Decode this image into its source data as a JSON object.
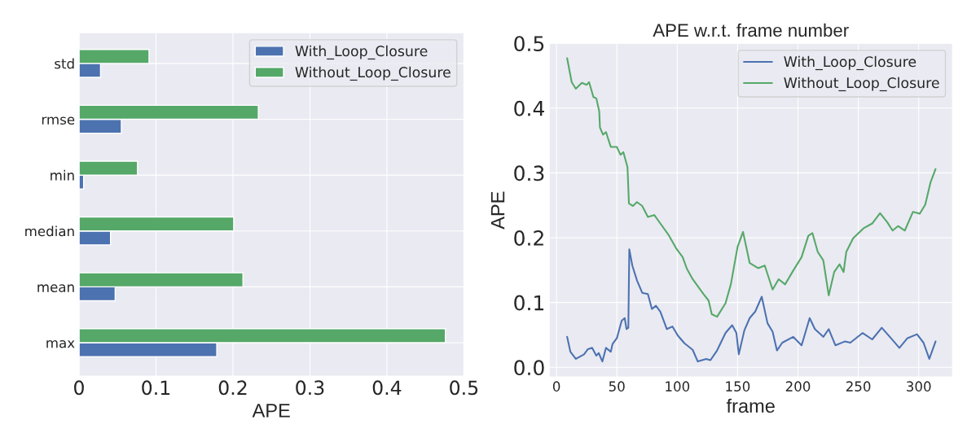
{
  "chart_data": [
    {
      "type": "bar",
      "orientation": "horizontal",
      "categories": [
        "std",
        "rmse",
        "min",
        "median",
        "mean",
        "max"
      ],
      "xlabel": "APE",
      "xlim": [
        0,
        0.5
      ],
      "xticks": [
        0,
        0.1,
        0.2,
        0.3,
        0.4,
        0.5
      ],
      "grid": true,
      "legend": "top right",
      "series": [
        {
          "name": "With_Loop_Closure",
          "color": "#4c72b0",
          "values": [
            0.028,
            0.055,
            0.006,
            0.041,
            0.047,
            0.179
          ]
        },
        {
          "name": "Without_Loop_Closure",
          "color": "#55a868",
          "values": [
            0.091,
            0.233,
            0.076,
            0.201,
            0.213,
            0.476
          ]
        }
      ]
    },
    {
      "type": "line",
      "title": "APE w.r.t. frame number",
      "xlabel": "frame",
      "ylabel": "APE",
      "xlim": [
        -6,
        328
      ],
      "ylim": [
        -0.015,
        0.5
      ],
      "xticks": [
        0,
        50,
        100,
        150,
        200,
        250,
        300
      ],
      "yticks": [
        {
          "value": 0,
          "label": "0.0"
        },
        0.1,
        0.2,
        0.3,
        0.4,
        0.5
      ],
      "grid": true,
      "legend": "top right",
      "series": [
        {
          "name": "With_Loop_Closure",
          "color": "#4c72b0",
          "x": [
            8.8,
            11.5,
            16,
            22.8,
            26,
            29.5,
            33,
            35,
            38,
            41,
            45,
            46.4,
            50,
            54,
            56.5,
            58,
            59.5,
            60.3,
            62.8,
            66.7,
            71,
            75.7,
            79,
            82.4,
            86,
            91.4,
            96,
            100.5,
            106,
            112.8,
            117,
            124,
            127.5,
            133,
            140,
            145.5,
            149,
            151,
            155.6,
            160,
            164.6,
            170,
            174.8,
            179,
            182.6,
            187,
            196,
            203,
            209.7,
            214,
            221,
            225.5,
            231,
            239,
            243.4,
            253.6,
            261.5,
            269.4,
            277,
            284,
            290.7,
            298.6,
            304,
            308.8,
            314
          ],
          "values": [
            0.047,
            0.024,
            0.013,
            0.02,
            0.028,
            0.03,
            0.018,
            0.022,
            0.009,
            0.03,
            0.024,
            0.036,
            0.045,
            0.072,
            0.076,
            0.059,
            0.061,
            0.182,
            0.157,
            0.134,
            0.115,
            0.113,
            0.09,
            0.095,
            0.086,
            0.059,
            0.063,
            0.049,
            0.037,
            0.027,
            0.009,
            0.013,
            0.011,
            0.026,
            0.053,
            0.065,
            0.053,
            0.02,
            0.057,
            0.076,
            0.086,
            0.109,
            0.068,
            0.055,
            0.026,
            0.038,
            0.047,
            0.034,
            0.076,
            0.059,
            0.047,
            0.059,
            0.034,
            0.04,
            0.038,
            0.053,
            0.043,
            0.061,
            0.045,
            0.03,
            0.045,
            0.051,
            0.038,
            0.013,
            0.04
          ]
        },
        {
          "name": "Without_Loop_Closure",
          "color": "#55a868",
          "x": [
            8.8,
            12.6,
            16,
            21,
            25,
            27,
            30.6,
            33,
            35.4,
            36,
            38.5,
            41,
            45,
            50,
            53,
            55.4,
            58.8,
            60,
            63.3,
            66.7,
            71,
            75.7,
            81,
            86,
            92.6,
            99,
            104.5,
            108,
            112.8,
            121.8,
            126,
            128.6,
            133,
            140,
            144.4,
            150,
            154.5,
            160,
            167,
            172.5,
            179,
            184,
            189.4,
            196,
            203,
            208.6,
            212,
            216.4,
            221,
            225.5,
            230,
            234.5,
            237.8,
            240,
            245.7,
            249,
            254.7,
            261.5,
            268,
            273.9,
            278.4,
            282.9,
            288.5,
            295.3,
            300.9,
            305.4,
            309.9,
            314
          ],
          "values": [
            0.477,
            0.44,
            0.43,
            0.439,
            0.436,
            0.44,
            0.417,
            0.415,
            0.395,
            0.37,
            0.359,
            0.363,
            0.34,
            0.34,
            0.328,
            0.332,
            0.309,
            0.253,
            0.249,
            0.255,
            0.249,
            0.232,
            0.235,
            0.222,
            0.205,
            0.184,
            0.17,
            0.152,
            0.136,
            0.113,
            0.103,
            0.082,
            0.078,
            0.099,
            0.128,
            0.186,
            0.209,
            0.161,
            0.153,
            0.157,
            0.12,
            0.136,
            0.128,
            0.149,
            0.17,
            0.203,
            0.207,
            0.178,
            0.165,
            0.111,
            0.147,
            0.159,
            0.147,
            0.178,
            0.199,
            0.205,
            0.215,
            0.222,
            0.238,
            0.224,
            0.211,
            0.218,
            0.211,
            0.24,
            0.237,
            0.251,
            0.286,
            0.306
          ]
        }
      ]
    }
  ]
}
